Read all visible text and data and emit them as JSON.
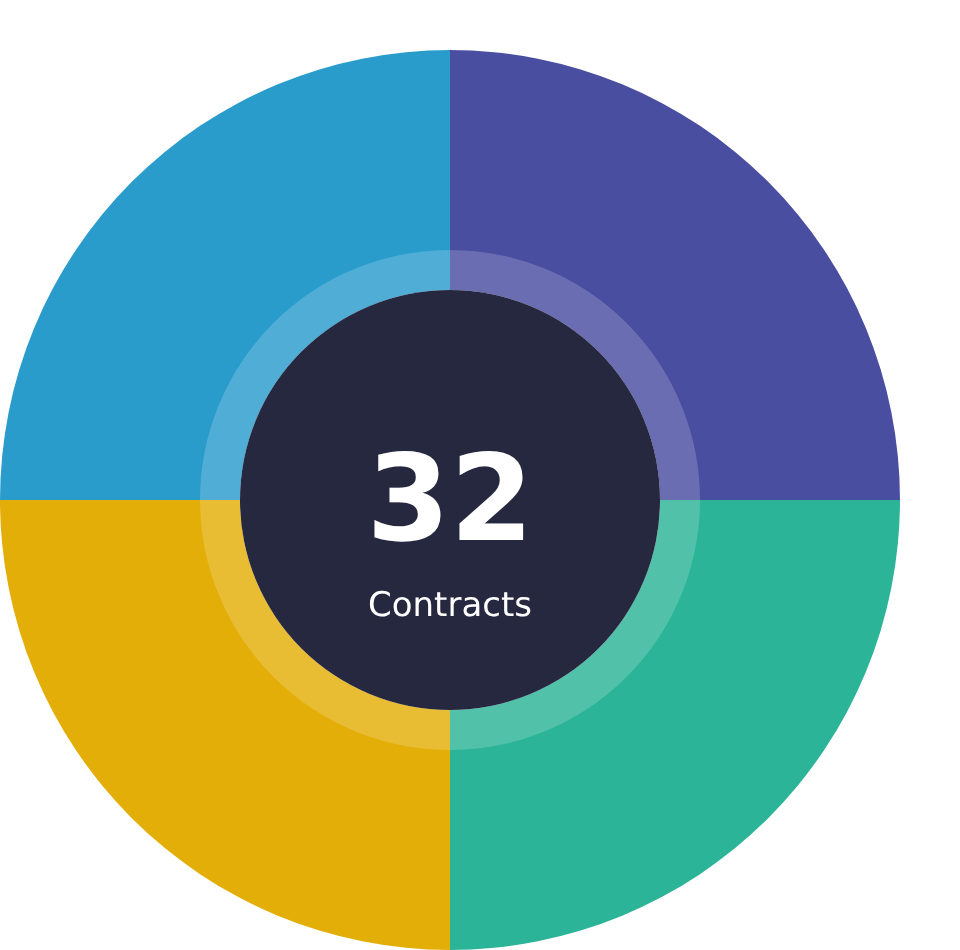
{
  "chart_data": {
    "type": "donut",
    "categories": [
      null,
      null,
      null,
      null
    ],
    "values": [
      25,
      25,
      25,
      25
    ],
    "colors": [
      "#4a4ea0",
      "#2bb497",
      "#e3ae07",
      "#2a9ccc"
    ],
    "annotations": [
      "32",
      "Contracts"
    ]
  }
}
